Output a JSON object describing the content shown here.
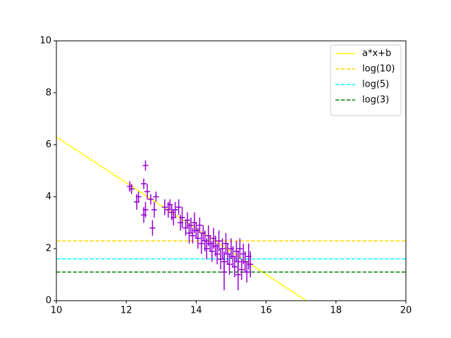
{
  "chart_data": {
    "type": "scatter",
    "xlim": [
      10,
      20
    ],
    "xticks": [
      10,
      12,
      14,
      16,
      18,
      20
    ],
    "ylim": [
      0,
      10
    ],
    "yticks": [
      0,
      2,
      4,
      6,
      8,
      10
    ],
    "legend": "upper right",
    "series": [
      {
        "name": "a*x+b",
        "type": "line",
        "style": "solid",
        "color": "#ffff00",
        "x": [
          10,
          17.15
        ],
        "values": [
          6.3,
          0
        ]
      },
      {
        "name": "log(10)",
        "type": "line",
        "style": "dashed",
        "color": "#ffd700",
        "x": [
          10,
          20
        ],
        "values": [
          2.3,
          2.3
        ]
      },
      {
        "name": "log(5)",
        "type": "line",
        "style": "dashed",
        "color": "#00ffff",
        "x": [
          10,
          20
        ],
        "values": [
          1.61,
          1.61
        ]
      },
      {
        "name": "log(3)",
        "type": "line",
        "style": "dashed",
        "color": "#008000",
        "x": [
          10,
          20
        ],
        "values": [
          1.1,
          1.1
        ]
      },
      {
        "type": "errorbar",
        "color": "#9400d3",
        "x": [
          12.1,
          12.15,
          12.3,
          12.35,
          12.5,
          12.55,
          12.55,
          12.5,
          12.6,
          12.7,
          12.75,
          12.8,
          12.85,
          13.1,
          13.2,
          13.25,
          13.3,
          13.35,
          13.4,
          13.5,
          13.55,
          13.6,
          13.7,
          13.75,
          13.8,
          13.85,
          13.9,
          13.95,
          14.0,
          14.05,
          14.1,
          14.15,
          14.2,
          14.25,
          14.3,
          14.35,
          14.4,
          14.45,
          14.5,
          14.55,
          14.6,
          14.65,
          14.7,
          14.75,
          14.8,
          14.85,
          14.9,
          14.95,
          15.0,
          15.05,
          15.1,
          15.15,
          15.2,
          15.25,
          15.3,
          15.35,
          15.4,
          15.45,
          15.5,
          15.55,
          14.8,
          15.2
        ],
        "values": [
          4.4,
          4.3,
          3.8,
          4.0,
          4.5,
          5.2,
          3.5,
          3.3,
          4.2,
          3.9,
          2.8,
          3.5,
          4.0,
          3.6,
          3.5,
          3.7,
          3.4,
          3.2,
          3.5,
          3.6,
          3.0,
          3.2,
          2.8,
          3.1,
          2.6,
          2.9,
          2.5,
          3.0,
          2.7,
          2.4,
          2.9,
          2.2,
          2.6,
          2.3,
          2.0,
          2.5,
          2.2,
          1.9,
          2.4,
          2.1,
          1.8,
          2.3,
          1.6,
          2.0,
          1.5,
          2.2,
          1.8,
          1.4,
          2.0,
          1.7,
          1.3,
          1.9,
          1.5,
          2.0,
          1.2,
          1.8,
          1.5,
          1.1,
          1.7,
          1.4,
          1.1,
          1.0
        ],
        "errors": [
          0.2,
          0.2,
          0.3,
          0.2,
          0.2,
          0.2,
          0.3,
          0.3,
          0.3,
          0.2,
          0.3,
          0.3,
          0.2,
          0.3,
          0.3,
          0.2,
          0.3,
          0.3,
          0.3,
          0.3,
          0.3,
          0.4,
          0.3,
          0.3,
          0.4,
          0.3,
          0.3,
          0.4,
          0.3,
          0.4,
          0.3,
          0.4,
          0.3,
          0.4,
          0.4,
          0.4,
          0.3,
          0.4,
          0.4,
          0.4,
          0.4,
          0.4,
          0.4,
          0.4,
          0.4,
          0.4,
          0.4,
          0.4,
          0.4,
          0.4,
          0.4,
          0.4,
          0.4,
          0.4,
          0.4,
          0.4,
          0.4,
          0.4,
          0.5,
          0.5,
          0.7,
          0.6
        ]
      }
    ]
  }
}
